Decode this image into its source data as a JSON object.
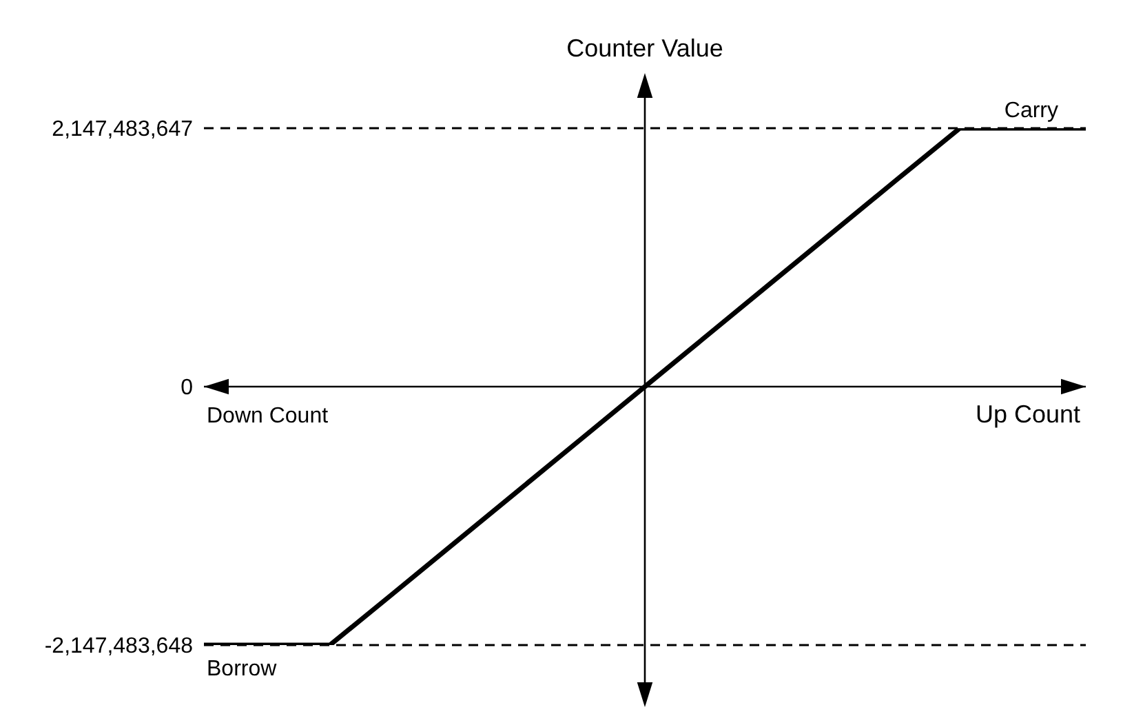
{
  "chart_data": {
    "type": "line",
    "ylabel": "Counter Value",
    "xlabel": "Up Count",
    "categories": [
      null,
      null,
      null,
      null,
      null,
      null,
      null,
      null,
      null,
      null,
      null,
      null,
      null,
      null,
      null
    ],
    "series": [
      {
        "color": "#000000",
        "values": [
          -2147483648,
          -2147483648,
          -2147483648,
          -1720000000,
          -1290000000,
          -860000000,
          -430000000,
          0,
          430000000,
          860000000,
          1290000000,
          1720000000,
          2147483647,
          2147483647,
          2147483647
        ]
      }
    ],
    "ylim": [
      -2147483648,
      2147483647
    ],
    "yticks": [
      {
        "value": 2147483647,
        "label": "2,147,483,647"
      },
      0,
      {
        "value": -2147483648,
        "label": "-2,147,483,648"
      }
    ],
    "annotations": [
      "Down Count",
      "Carry",
      "Borrow"
    ],
    "tick_labels": "y",
    "grid": "y",
    "legend": false,
    "marker": "none",
    "line_style": "solid"
  }
}
